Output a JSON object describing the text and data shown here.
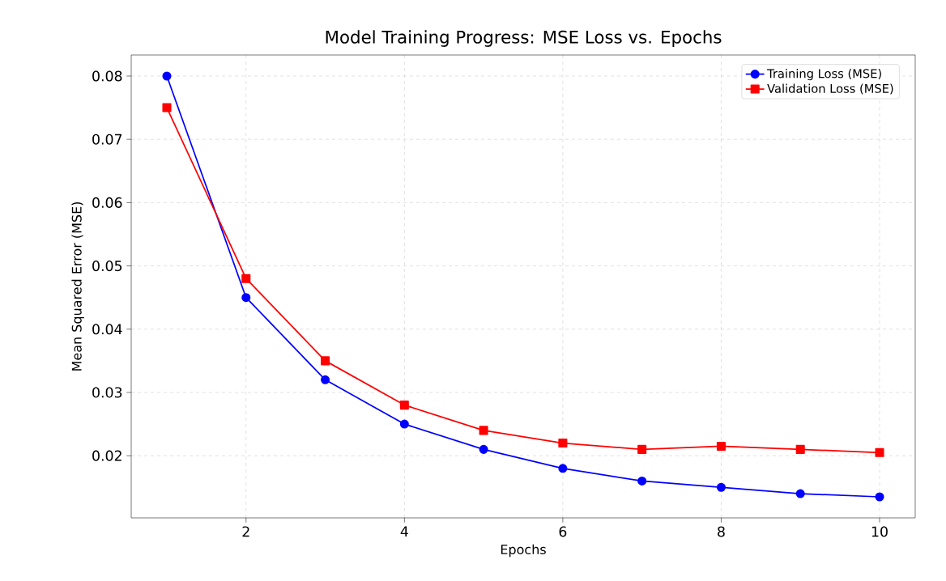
{
  "chart_data": {
    "type": "line",
    "title": "Model Training Progress: MSE Loss vs. Epochs",
    "xlabel": "Epochs",
    "ylabel": "Mean Squared Error (MSE)",
    "x": [
      1,
      2,
      3,
      4,
      5,
      6,
      7,
      8,
      9,
      10
    ],
    "series": [
      {
        "name": "Training Loss (MSE)",
        "color": "#0000ff",
        "marker": "circle",
        "values": [
          0.08,
          0.045,
          0.032,
          0.025,
          0.021,
          0.018,
          0.016,
          0.015,
          0.014,
          0.0135
        ]
      },
      {
        "name": "Validation Loss (MSE)",
        "color": "#ff0000",
        "marker": "square",
        "values": [
          0.075,
          0.048,
          0.035,
          0.028,
          0.024,
          0.022,
          0.021,
          0.0215,
          0.021,
          0.0205
        ]
      }
    ],
    "xlim": [
      0.55,
      10.45
    ],
    "ylim": [
      0.010175,
      0.083325
    ],
    "xticks": [
      2,
      4,
      6,
      8,
      10
    ],
    "yticks": [
      0.02,
      0.03,
      0.04,
      0.05,
      0.06,
      0.07,
      0.08
    ],
    "grid": true,
    "legend": "top right",
    "line_style": "solid"
  }
}
